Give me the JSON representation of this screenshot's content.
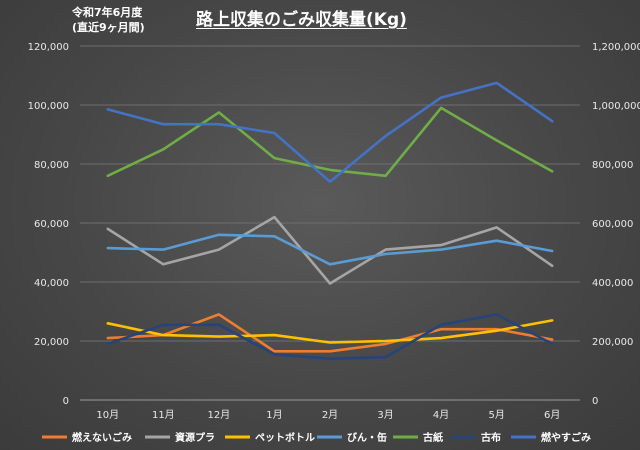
{
  "chart_data": {
    "type": "line",
    "title": "路上収集のごみ収集量(Kg)",
    "note_lines": [
      "令和7年6月度",
      "(直近9ヶ月間)"
    ],
    "categories": [
      "10月",
      "11月",
      "12月",
      "1月",
      "2月",
      "3月",
      "4月",
      "5月",
      "6月"
    ],
    "left_axis": {
      "ylim": [
        0,
        120000
      ],
      "ticks": [
        "0",
        "20,000",
        "40,000",
        "60,000",
        "80,000",
        "100,000",
        "120,000"
      ]
    },
    "right_axis": {
      "ylim": [
        0,
        1200000
      ],
      "ticks": [
        "0",
        "200,000",
        "400,000",
        "600,000",
        "800,000",
        "1,000,000",
        "1,200,000"
      ]
    },
    "grid": true,
    "legend_position": "bottom",
    "series": [
      {
        "name": "燃えないごみ",
        "color": "#ed7d31",
        "axis": "left",
        "values": [
          21000,
          22000,
          29000,
          16500,
          16500,
          19000,
          24000,
          24000,
          20500
        ]
      },
      {
        "name": "資源プラ",
        "color": "#a5a5a5",
        "axis": "left",
        "values": [
          58000,
          46000,
          51000,
          62000,
          39500,
          51000,
          52500,
          58500,
          45500
        ]
      },
      {
        "name": "ペットボトル",
        "color": "#ffc000",
        "axis": "left",
        "values": [
          26000,
          22000,
          21500,
          22000,
          19500,
          20000,
          21000,
          23500,
          27000
        ]
      },
      {
        "name": "びん・缶",
        "color": "#5b9bd5",
        "axis": "left",
        "values": [
          51500,
          51000,
          56000,
          55500,
          46000,
          49500,
          51000,
          54000,
          50500
        ]
      },
      {
        "name": "古紙",
        "color": "#70ad47",
        "axis": "left",
        "values": [
          76000,
          85000,
          97500,
          82000,
          78000,
          76000,
          99000,
          88000,
          77500
        ]
      },
      {
        "name": "古布",
        "color": "#264478",
        "axis": "left",
        "values": [
          19000,
          25500,
          25500,
          15500,
          14000,
          14500,
          25500,
          29000,
          19000
        ]
      },
      {
        "name": "燃やすごみ",
        "color": "#4472c4",
        "axis": "right",
        "values": [
          985000,
          935000,
          935000,
          905000,
          740000,
          895000,
          1025000,
          1075000,
          945000
        ]
      }
    ]
  }
}
